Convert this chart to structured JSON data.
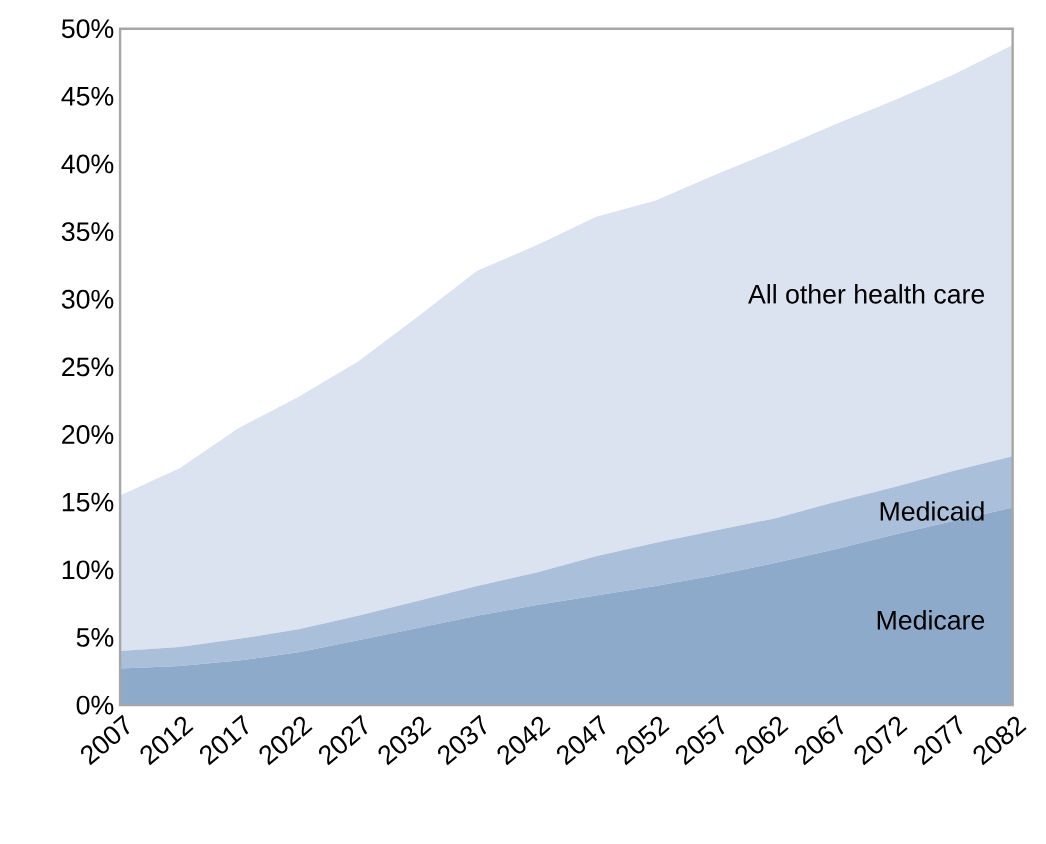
{
  "chart_data": {
    "type": "area",
    "stacked": true,
    "x": [
      2007,
      2012,
      2017,
      2022,
      2027,
      2032,
      2037,
      2042,
      2047,
      2052,
      2057,
      2062,
      2067,
      2072,
      2077,
      2082
    ],
    "xlim": [
      2007,
      2082
    ],
    "xticks": [
      2007,
      2012,
      2017,
      2022,
      2027,
      2032,
      2037,
      2042,
      2047,
      2052,
      2057,
      2062,
      2067,
      2072,
      2077,
      2082
    ],
    "ylim": [
      0,
      50
    ],
    "yticks": [
      {
        "value": 0,
        "label": "0%"
      },
      {
        "value": 5,
        "label": "5%"
      },
      {
        "value": 10,
        "label": "10%"
      },
      {
        "value": 15,
        "label": "15%"
      },
      {
        "value": 20,
        "label": "20%"
      },
      {
        "value": 25,
        "label": "25%"
      },
      {
        "value": 30,
        "label": "30%"
      },
      {
        "value": 35,
        "label": "35%"
      },
      {
        "value": 40,
        "label": "40%"
      },
      {
        "value": 45,
        "label": "45%"
      },
      {
        "value": 50,
        "label": "50%"
      }
    ],
    "grid": false,
    "series": [
      {
        "name": "Medicare",
        "color": "#8eaacb",
        "values": [
          2.7,
          2.9,
          3.3,
          3.9,
          4.8,
          5.7,
          6.6,
          7.4,
          8.1,
          8.8,
          9.6,
          10.5,
          11.5,
          12.6,
          13.6,
          14.6
        ]
      },
      {
        "name": "Medicaid",
        "color": "#aabfd9",
        "values": [
          1.3,
          1.4,
          1.6,
          1.7,
          1.8,
          2.0,
          2.2,
          2.4,
          2.9,
          3.2,
          3.3,
          3.3,
          3.5,
          3.5,
          3.7,
          3.8
        ]
      },
      {
        "name": "All other health care",
        "color": "#dce3f0",
        "values": [
          11.5,
          13.2,
          15.6,
          17.2,
          18.8,
          21.0,
          23.3,
          24.2,
          25.1,
          25.3,
          26.3,
          27.2,
          27.9,
          28.6,
          29.3,
          30.4
        ]
      }
    ]
  }
}
